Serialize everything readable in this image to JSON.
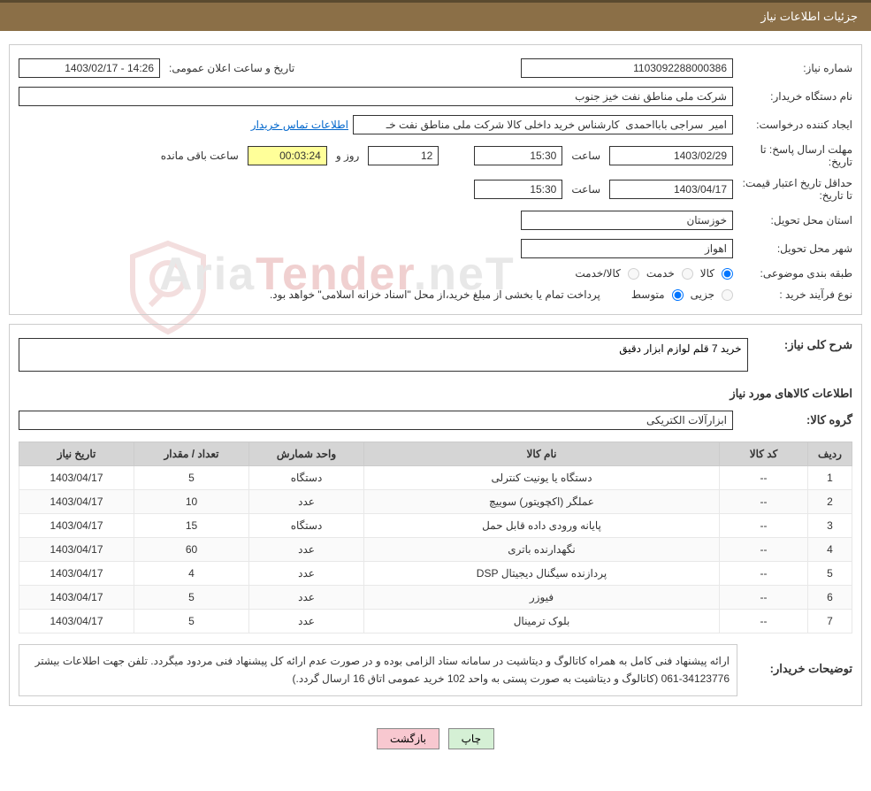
{
  "header": {
    "title": "جزئیات اطلاعات نیاز"
  },
  "fields": {
    "need_no_label": "شماره نیاز:",
    "need_no": "1103092288000386",
    "announce_label": "تاریخ و ساعت اعلان عمومی:",
    "announce_val": "14:26 - 1403/02/17",
    "buyer_label": "نام دستگاه خریدار:",
    "buyer_val": "شرکت ملی مناطق نفت خیز جنوب",
    "creator_label": "ایجاد کننده درخواست:",
    "creator_val": "امیر  سراجی بابااحمدی  کارشناس خرید داخلی کالا شرکت ملی مناطق نفت خـ",
    "contact_link": "اطلاعات تماس خریدار",
    "deadline_label": "مهلت ارسال پاسخ:  تا تاریخ:",
    "deadline_date": "1403/02/29",
    "time_lbl": "ساعت",
    "deadline_time": "15:30",
    "days": "12",
    "days_lbl": "روز و",
    "remain_time": "00:03:24",
    "remain_lbl": "ساعت باقی مانده",
    "validity_label": "حداقل تاریخ اعتبار قیمت: تا تاریخ:",
    "validity_date": "1403/04/17",
    "validity_time": "15:30",
    "province_label": "استان محل تحویل:",
    "province_val": "خوزستان",
    "city_label": "شهر محل تحویل:",
    "city_val": "اهواز",
    "category_label": "طبقه بندی موضوعی:",
    "cat_opt1": "کالا",
    "cat_opt2": "خدمت",
    "cat_opt3": "کالا/خدمت",
    "process_label": "نوع فرآیند خرید :",
    "proc_opt1": "جزیی",
    "proc_opt2": "متوسط",
    "proc_note": "پرداخت تمام یا بخشی از مبلغ خرید،از محل \"اسناد خزانه اسلامی\" خواهد بود."
  },
  "detail": {
    "summary_label": "شرح کلی نیاز:",
    "summary_val": "خرید 7 قلم لوازم ابزار دقیق",
    "goods_section": "اطلاعات کالاهای مورد نیاز",
    "group_label": "گروه کالا:",
    "group_val": "ابزارآلات الکتریکی"
  },
  "table": {
    "headers": [
      "ردیف",
      "کد کالا",
      "نام کالا",
      "واحد شمارش",
      "تعداد / مقدار",
      "تاریخ نیاز"
    ],
    "rows": [
      [
        "1",
        "--",
        "دستگاه یا یونیت کنترلی",
        "دستگاه",
        "5",
        "1403/04/17"
      ],
      [
        "2",
        "--",
        "عملگر (اکچویتور) سوییچ",
        "عدد",
        "10",
        "1403/04/17"
      ],
      [
        "3",
        "--",
        "پایانه ورودی داده قابل حمل",
        "دستگاه",
        "15",
        "1403/04/17"
      ],
      [
        "4",
        "--",
        "نگهدارنده باتری",
        "عدد",
        "60",
        "1403/04/17"
      ],
      [
        "5",
        "--",
        "پردازنده سیگنال دیجیتال DSP",
        "عدد",
        "4",
        "1403/04/17"
      ],
      [
        "6",
        "--",
        "فیوزر",
        "عدد",
        "5",
        "1403/04/17"
      ],
      [
        "7",
        "--",
        "بلوک ترمینال",
        "عدد",
        "5",
        "1403/04/17"
      ]
    ]
  },
  "buyer_notes": {
    "label": "توضیحات خریدار:",
    "text": "ارائه پیشنهاد فنی کامل به همراه کاتالوگ و دیتاشیت در سامانه ستاد الزامی بوده و در صورت عدم ارائه کل پیشنهاد فنی مردود میگردد. تلفن جهت اطلاعات بیشتر 34123776-061  (کاتالوگ و دیتاشیت به صورت پستی به واحد 102 خرید عمومی اتاق 16 ارسال گردد.)"
  },
  "buttons": {
    "print": "چاپ",
    "back": "بازگشت"
  },
  "watermark": {
    "text_a": "Aria",
    "text_b": "Tender",
    "text_c": ".neT"
  },
  "colors": {
    "header_bg": "#8b6f47",
    "header_border": "#5a4a2f",
    "th_bg": "#d5d5d5",
    "highlight": "#ffff99",
    "link": "#0066cc",
    "btn_print": "#d5f0d5",
    "btn_back": "#f8c8d0"
  }
}
